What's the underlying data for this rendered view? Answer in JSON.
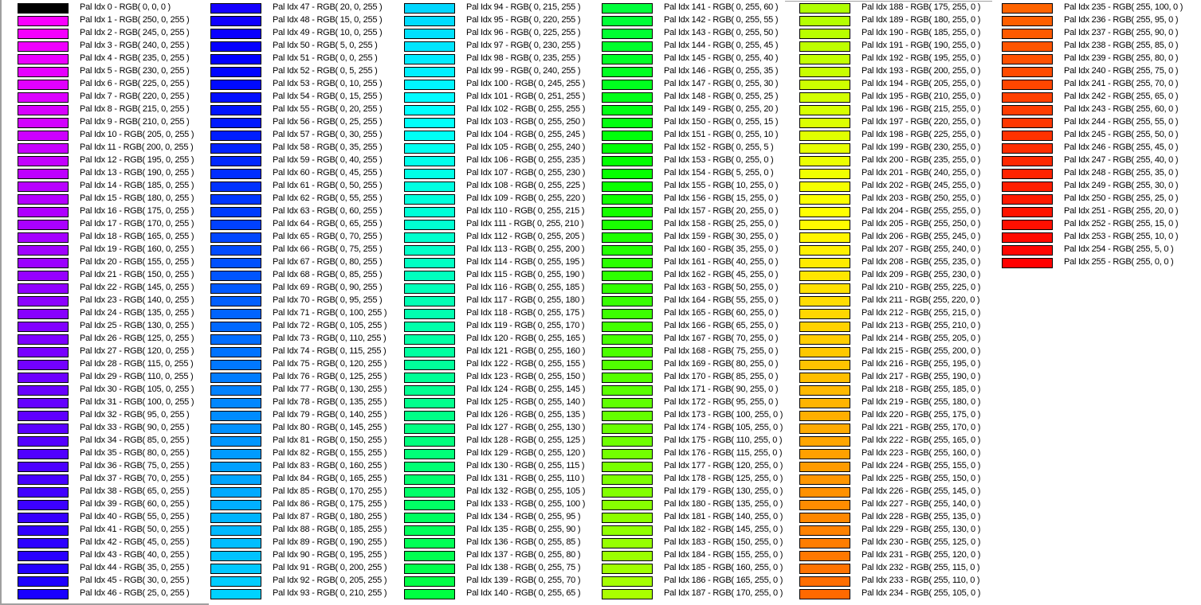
{
  "palette": {
    "rows_per_column": 47,
    "entries": [
      "Pal Idx 0 - RGB( 0, 0, 0 )",
      "Pal Idx 1 - RGB( 250, 0, 255 )",
      "Pal Idx 2 - RGB( 245, 0, 255 )",
      "Pal Idx 3 - RGB( 240, 0, 255 )",
      "Pal Idx 4 - RGB( 235, 0, 255 )",
      "Pal Idx 5 - RGB( 230, 0, 255 )",
      "Pal Idx 6 - RGB( 225, 0, 255 )",
      "Pal Idx 7 - RGB( 220, 0, 255 )",
      "Pal Idx 8 - RGB( 215, 0, 255 )",
      "Pal Idx 9 - RGB( 210, 0, 255 )",
      "Pal Idx 10 - RGB( 205, 0, 255 )",
      "Pal Idx 11 - RGB( 200, 0, 255 )",
      "Pal Idx 12 - RGB( 195, 0, 255 )",
      "Pal Idx 13 - RGB( 190, 0, 255 )",
      "Pal Idx 14 - RGB( 185, 0, 255 )",
      "Pal Idx 15 - RGB( 180, 0, 255 )",
      "Pal Idx 16 - RGB( 175, 0, 255 )",
      "Pal Idx 17 - RGB( 170, 0, 255 )",
      "Pal Idx 18 - RGB( 165, 0, 255 )",
      "Pal Idx 19 - RGB( 160, 0, 255 )",
      "Pal Idx 20 - RGB( 155, 0, 255 )",
      "Pal Idx 21 - RGB( 150, 0, 255 )",
      "Pal Idx 22 - RGB( 145, 0, 255 )",
      "Pal Idx 23 - RGB( 140, 0, 255 )",
      "Pal Idx 24 - RGB( 135, 0, 255 )",
      "Pal Idx 25 - RGB( 130, 0, 255 )",
      "Pal Idx 26 - RGB( 125, 0, 255 )",
      "Pal Idx 27 - RGB( 120, 0, 255 )",
      "Pal Idx 28 - RGB( 115, 0, 255 )",
      "Pal Idx 29 - RGB( 110, 0, 255 )",
      "Pal Idx 30 - RGB( 105, 0, 255 )",
      "Pal Idx 31 - RGB( 100, 0, 255 )",
      "Pal Idx 32 - RGB( 95, 0, 255 )",
      "Pal Idx 33 - RGB( 90, 0, 255 )",
      "Pal Idx 34 - RGB( 85, 0, 255 )",
      "Pal Idx 35 - RGB( 80, 0, 255 )",
      "Pal Idx 36 - RGB( 75, 0, 255 )",
      "Pal Idx 37 - RGB( 70, 0, 255 )",
      "Pal Idx 38 - RGB( 65, 0, 255 )",
      "Pal Idx 39 - RGB( 60, 0, 255 )",
      "Pal Idx 40 - RGB( 55, 0, 255 )",
      "Pal Idx 41 - RGB( 50, 0, 255 )",
      "Pal Idx 42 - RGB( 45, 0, 255 )",
      "Pal Idx 43 - RGB( 40, 0, 255 )",
      "Pal Idx 44 - RGB( 35, 0, 255 )",
      "Pal Idx 45 - RGB( 30, 0, 255 )",
      "Pal Idx 46 - RGB( 25, 0, 255 )",
      "Pal Idx 47 - RGB( 20, 0, 255 )",
      "Pal Idx 48 - RGB( 15, 0, 255 )",
      "Pal Idx 49 - RGB( 10, 0, 255 )",
      "Pal Idx 50 - RGB( 5, 0, 255 )",
      "Pal Idx 51 - RGB( 0, 0, 255 )",
      "Pal Idx 52 - RGB( 0, 5, 255 )",
      "Pal Idx 53 - RGB( 0, 10, 255 )",
      "Pal Idx 54 - RGB( 0, 15, 255 )",
      "Pal Idx 55 - RGB( 0, 20, 255 )",
      "Pal Idx 56 - RGB( 0, 25, 255 )",
      "Pal Idx 57 - RGB( 0, 30, 255 )",
      "Pal Idx 58 - RGB( 0, 35, 255 )",
      "Pal Idx 59 - RGB( 0, 40, 255 )",
      "Pal Idx 60 - RGB( 0, 45, 255 )",
      "Pal Idx 61 - RGB( 0, 50, 255 )",
      "Pal Idx 62 - RGB( 0, 55, 255 )",
      "Pal Idx 63 - RGB( 0, 60, 255 )",
      "Pal Idx 64 - RGB( 0, 65, 255 )",
      "Pal Idx 65 - RGB( 0, 70, 255 )",
      "Pal Idx 66 - RGB( 0, 75, 255 )",
      "Pal Idx 67 - RGB( 0, 80, 255 )",
      "Pal Idx 68 - RGB( 0, 85, 255 )",
      "Pal Idx 69 - RGB( 0, 90, 255 )",
      "Pal Idx 70 - RGB( 0, 95, 255 )",
      "Pal Idx 71 - RGB( 0, 100, 255 )",
      "Pal Idx 72 - RGB( 0, 105, 255 )",
      "Pal Idx 73 - RGB( 0, 110, 255 )",
      "Pal Idx 74 - RGB( 0, 115, 255 )",
      "Pal Idx 75 - RGB( 0, 120, 255 )",
      "Pal Idx 76 - RGB( 0, 125, 255 )",
      "Pal Idx 77 - RGB( 0, 130, 255 )",
      "Pal Idx 78 - RGB( 0, 135, 255 )",
      "Pal Idx 79 - RGB( 0, 140, 255 )",
      "Pal Idx 80 - RGB( 0, 145, 255 )",
      "Pal Idx 81 - RGB( 0, 150, 255 )",
      "Pal Idx 82 - RGB( 0, 155, 255 )",
      "Pal Idx 83 - RGB( 0, 160, 255 )",
      "Pal Idx 84 - RGB( 0, 165, 255 )",
      "Pal Idx 85 - RGB( 0, 170, 255 )",
      "Pal Idx 86 - RGB( 0, 175, 255 )",
      "Pal Idx 87 - RGB( 0, 180, 255 )",
      "Pal Idx 88 - RGB( 0, 185, 255 )",
      "Pal Idx 89 - RGB( 0, 190, 255 )",
      "Pal Idx 90 - RGB( 0, 195, 255 )",
      "Pal Idx 91 - RGB( 0, 200, 255 )",
      "Pal Idx 92 - RGB( 0, 205, 255 )",
      "Pal Idx 93 - RGB( 0, 210, 255 )",
      "Pal Idx 94 - RGB( 0, 215, 255 )",
      "Pal Idx 95 - RGB( 0, 220, 255 )",
      "Pal Idx 96 - RGB( 0, 225, 255 )",
      "Pal Idx 97 - RGB( 0, 230, 255 )",
      "Pal Idx 98 - RGB( 0, 235, 255 )",
      "Pal Idx 99 - RGB( 0, 240, 255 )",
      "Pal Idx 100 - RGB( 0, 245, 255 )",
      "Pal Idx 101 - RGB( 0, 251, 255 )",
      "Pal Idx 102 - RGB( 0, 255, 255 )",
      "Pal Idx 103 - RGB( 0, 255, 250 )",
      "Pal Idx 104 - RGB( 0, 255, 245 )",
      "Pal Idx 105 - RGB( 0, 255, 240 )",
      "Pal Idx 106 - RGB( 0, 255, 235 )",
      "Pal Idx 107 - RGB( 0, 255, 230 )",
      "Pal Idx 108 - RGB( 0, 255, 225 )",
      "Pal Idx 109 - RGB( 0, 255, 220 )",
      "Pal Idx 110 - RGB( 0, 255, 215 )",
      "Pal Idx 111 - RGB( 0, 255, 210 )",
      "Pal Idx 112 - RGB( 0, 255, 205 )",
      "Pal Idx 113 - RGB( 0, 255, 200 )",
      "Pal Idx 114 - RGB( 0, 255, 195 )",
      "Pal Idx 115 - RGB( 0, 255, 190 )",
      "Pal Idx 116 - RGB( 0, 255, 185 )",
      "Pal Idx 117 - RGB( 0, 255, 180 )",
      "Pal Idx 118 - RGB( 0, 255, 175 )",
      "Pal Idx 119 - RGB( 0, 255, 170 )",
      "Pal Idx 120 - RGB( 0, 255, 165 )",
      "Pal Idx 121 - RGB( 0, 255, 160 )",
      "Pal Idx 122 - RGB( 0, 255, 155 )",
      "Pal Idx 123 - RGB( 0, 255, 150 )",
      "Pal Idx 124 - RGB( 0, 255, 145 )",
      "Pal Idx 125 - RGB( 0, 255, 140 )",
      "Pal Idx 126 - RGB( 0, 255, 135 )",
      "Pal Idx 127 - RGB( 0, 255, 130 )",
      "Pal Idx 128 - RGB( 0, 255, 125 )",
      "Pal Idx 129 - RGB( 0, 255, 120 )",
      "Pal Idx 130 - RGB( 0, 255, 115 )",
      "Pal Idx 131 - RGB( 0, 255, 110 )",
      "Pal Idx 132 - RGB( 0, 255, 105 )",
      "Pal Idx 133 - RGB( 0, 255, 100 )",
      "Pal Idx 134 - RGB( 0, 255, 95 )",
      "Pal Idx 135 - RGB( 0, 255, 90 )",
      "Pal Idx 136 - RGB( 0, 255, 85 )",
      "Pal Idx 137 - RGB( 0, 255, 80 )",
      "Pal Idx 138 - RGB( 0, 255, 75 )",
      "Pal Idx 139 - RGB( 0, 255, 70 )",
      "Pal Idx 140 - RGB( 0, 255, 65 )",
      "Pal Idx 141 - RGB( 0, 255, 60 )",
      "Pal Idx 142 - RGB( 0, 255, 55 )",
      "Pal Idx 143 - RGB( 0, 255, 50 )",
      "Pal Idx 144 - RGB( 0, 255, 45 )",
      "Pal Idx 145 - RGB( 0, 255, 40 )",
      "Pal Idx 146 - RGB( 0, 255, 35 )",
      "Pal Idx 147 - RGB( 0, 255, 30 )",
      "Pal Idx 148 - RGB( 0, 255, 25 )",
      "Pal Idx 149 - RGB( 0, 255, 20 )",
      "Pal Idx 150 - RGB( 0, 255, 15 )",
      "Pal Idx 151 - RGB( 0, 255, 10 )",
      "Pal Idx 152 - RGB( 0, 255, 5 )",
      "Pal Idx 153 - RGB( 0, 255, 0 )",
      "Pal Idx 154 - RGB( 5, 255, 0 )",
      "Pal Idx 155 - RGB( 10, 255, 0 )",
      "Pal Idx 156 - RGB( 15, 255, 0 )",
      "Pal Idx 157 - RGB( 20, 255, 0 )",
      "Pal Idx 158 - RGB( 25, 255, 0 )",
      "Pal Idx 159 - RGB( 30, 255, 0 )",
      "Pal Idx 160 - RGB( 35, 255, 0 )",
      "Pal Idx 161 - RGB( 40, 255, 0 )",
      "Pal Idx 162 - RGB( 45, 255, 0 )",
      "Pal Idx 163 - RGB( 50, 255, 0 )",
      "Pal Idx 164 - RGB( 55, 255, 0 )",
      "Pal Idx 165 - RGB( 60, 255, 0 )",
      "Pal Idx 166 - RGB( 65, 255, 0 )",
      "Pal Idx 167 - RGB( 70, 255, 0 )",
      "Pal Idx 168 - RGB( 75, 255, 0 )",
      "Pal Idx 169 - RGB( 80, 255, 0 )",
      "Pal Idx 170 - RGB( 85, 255, 0 )",
      "Pal Idx 171 - RGB( 90, 255, 0 )",
      "Pal Idx 172 - RGB( 95, 255, 0 )",
      "Pal Idx 173 - RGB( 100, 255, 0 )",
      "Pal Idx 174 - RGB( 105, 255, 0 )",
      "Pal Idx 175 - RGB( 110, 255, 0 )",
      "Pal Idx 176 - RGB( 115, 255, 0 )",
      "Pal Idx 177 - RGB( 120, 255, 0 )",
      "Pal Idx 178 - RGB( 125, 255, 0 )",
      "Pal Idx 179 - RGB( 130, 255, 0 )",
      "Pal Idx 180 - RGB( 135, 255, 0 )",
      "Pal Idx 181 - RGB( 140, 255, 0 )",
      "Pal Idx 182 - RGB( 145, 255, 0 )",
      "Pal Idx 183 - RGB( 150, 255, 0 )",
      "Pal Idx 184 - RGB( 155, 255, 0 )",
      "Pal Idx 185 - RGB( 160, 255, 0 )",
      "Pal Idx 186 - RGB( 165, 255, 0 )",
      "Pal Idx 187 - RGB( 170, 255, 0 )",
      "Pal Idx 188 - RGB( 175, 255, 0 )",
      "Pal Idx 189 - RGB( 180, 255, 0 )",
      "Pal Idx 190 - RGB( 185, 255, 0 )",
      "Pal Idx 191 - RGB( 190, 255, 0 )",
      "Pal Idx 192 - RGB( 195, 255, 0 )",
      "Pal Idx 193 - RGB( 200, 255, 0 )",
      "Pal Idx 194 - RGB( 205, 255, 0 )",
      "Pal Idx 195 - RGB( 210, 255, 0 )",
      "Pal Idx 196 - RGB( 215, 255, 0 )",
      "Pal Idx 197 - RGB( 220, 255, 0 )",
      "Pal Idx 198 - RGB( 225, 255, 0 )",
      "Pal Idx 199 - RGB( 230, 255, 0 )",
      "Pal Idx 200 - RGB( 235, 255, 0 )",
      "Pal Idx 201 - RGB( 240, 255, 0 )",
      "Pal Idx 202 - RGB( 245, 255, 0 )",
      "Pal Idx 203 - RGB( 250, 255, 0 )",
      "Pal Idx 204 - RGB( 255, 255, 0 )",
      "Pal Idx 205 - RGB( 255, 250, 0 )",
      "Pal Idx 206 - RGB( 255, 245, 0 )",
      "Pal Idx 207 - RGB( 255, 240, 0 )",
      "Pal Idx 208 - RGB( 255, 235, 0 )",
      "Pal Idx 209 - RGB( 255, 230, 0 )",
      "Pal Idx 210 - RGB( 255, 225, 0 )",
      "Pal Idx 211 - RGB( 255, 220, 0 )",
      "Pal Idx 212 - RGB( 255, 215, 0 )",
      "Pal Idx 213 - RGB( 255, 210, 0 )",
      "Pal Idx 214 - RGB( 255, 205, 0 )",
      "Pal Idx 215 - RGB( 255, 200, 0 )",
      "Pal Idx 216 - RGB( 255, 195, 0 )",
      "Pal Idx 217 - RGB( 255, 190, 0 )",
      "Pal Idx 218 - RGB( 255, 185, 0 )",
      "Pal Idx 219 - RGB( 255, 180, 0 )",
      "Pal Idx 220 - RGB( 255, 175, 0 )",
      "Pal Idx 221 - RGB( 255, 170, 0 )",
      "Pal Idx 222 - RGB( 255, 165, 0 )",
      "Pal Idx 223 - RGB( 255, 160, 0 )",
      "Pal Idx 224 - RGB( 255, 155, 0 )",
      "Pal Idx 225 - RGB( 255, 150, 0 )",
      "Pal Idx 226 - RGB( 255, 145, 0 )",
      "Pal Idx 227 - RGB( 255, 140, 0 )",
      "Pal Idx 228 - RGB( 255, 135, 0 )",
      "Pal Idx 229 - RGB( 255, 130, 0 )",
      "Pal Idx 230 - RGB( 255, 125, 0 )",
      "Pal Idx 231 - RGB( 255, 120, 0 )",
      "Pal Idx 232 - RGB( 255, 115, 0 )",
      "Pal Idx 233 - RGB( 255, 110, 0 )",
      "Pal Idx 234 - RGB( 255, 105, 0 )",
      "Pal Idx 235 - RGB( 255, 100, 0 )",
      "Pal Idx 236 - RGB( 255, 95, 0 )",
      "Pal Idx 237 - RGB( 255, 90, 0 )",
      "Pal Idx 238 - RGB( 255, 85, 0 )",
      "Pal Idx 239 - RGB( 255, 80, 0 )",
      "Pal Idx 240 - RGB( 255, 75, 0 )",
      "Pal Idx 241 - RGB( 255, 70, 0 )",
      "Pal Idx 242 - RGB( 255, 65, 0 )",
      "Pal Idx 243 - RGB( 255, 60, 0 )",
      "Pal Idx 244 - RGB( 255, 55, 0 )",
      "Pal Idx 245 - RGB( 255, 50, 0 )",
      "Pal Idx 246 - RGB( 255, 45, 0 )",
      "Pal Idx 247 - RGB( 255, 40, 0 )",
      "Pal Idx 248 - RGB( 255, 35, 0 )",
      "Pal Idx 249 - RGB( 255, 30, 0 )",
      "Pal Idx 250 - RGB( 255, 25, 0 )",
      "Pal Idx 251 - RGB( 255, 20, 0 )",
      "Pal Idx 252 - RGB( 255, 15, 0 )",
      "Pal Idx 253 - RGB( 255, 10, 0 )",
      "Pal Idx 254 - RGB( 255, 5, 0 )",
      "Pal Idx 255 - RGB( 255, 0, 0 )"
    ]
  }
}
